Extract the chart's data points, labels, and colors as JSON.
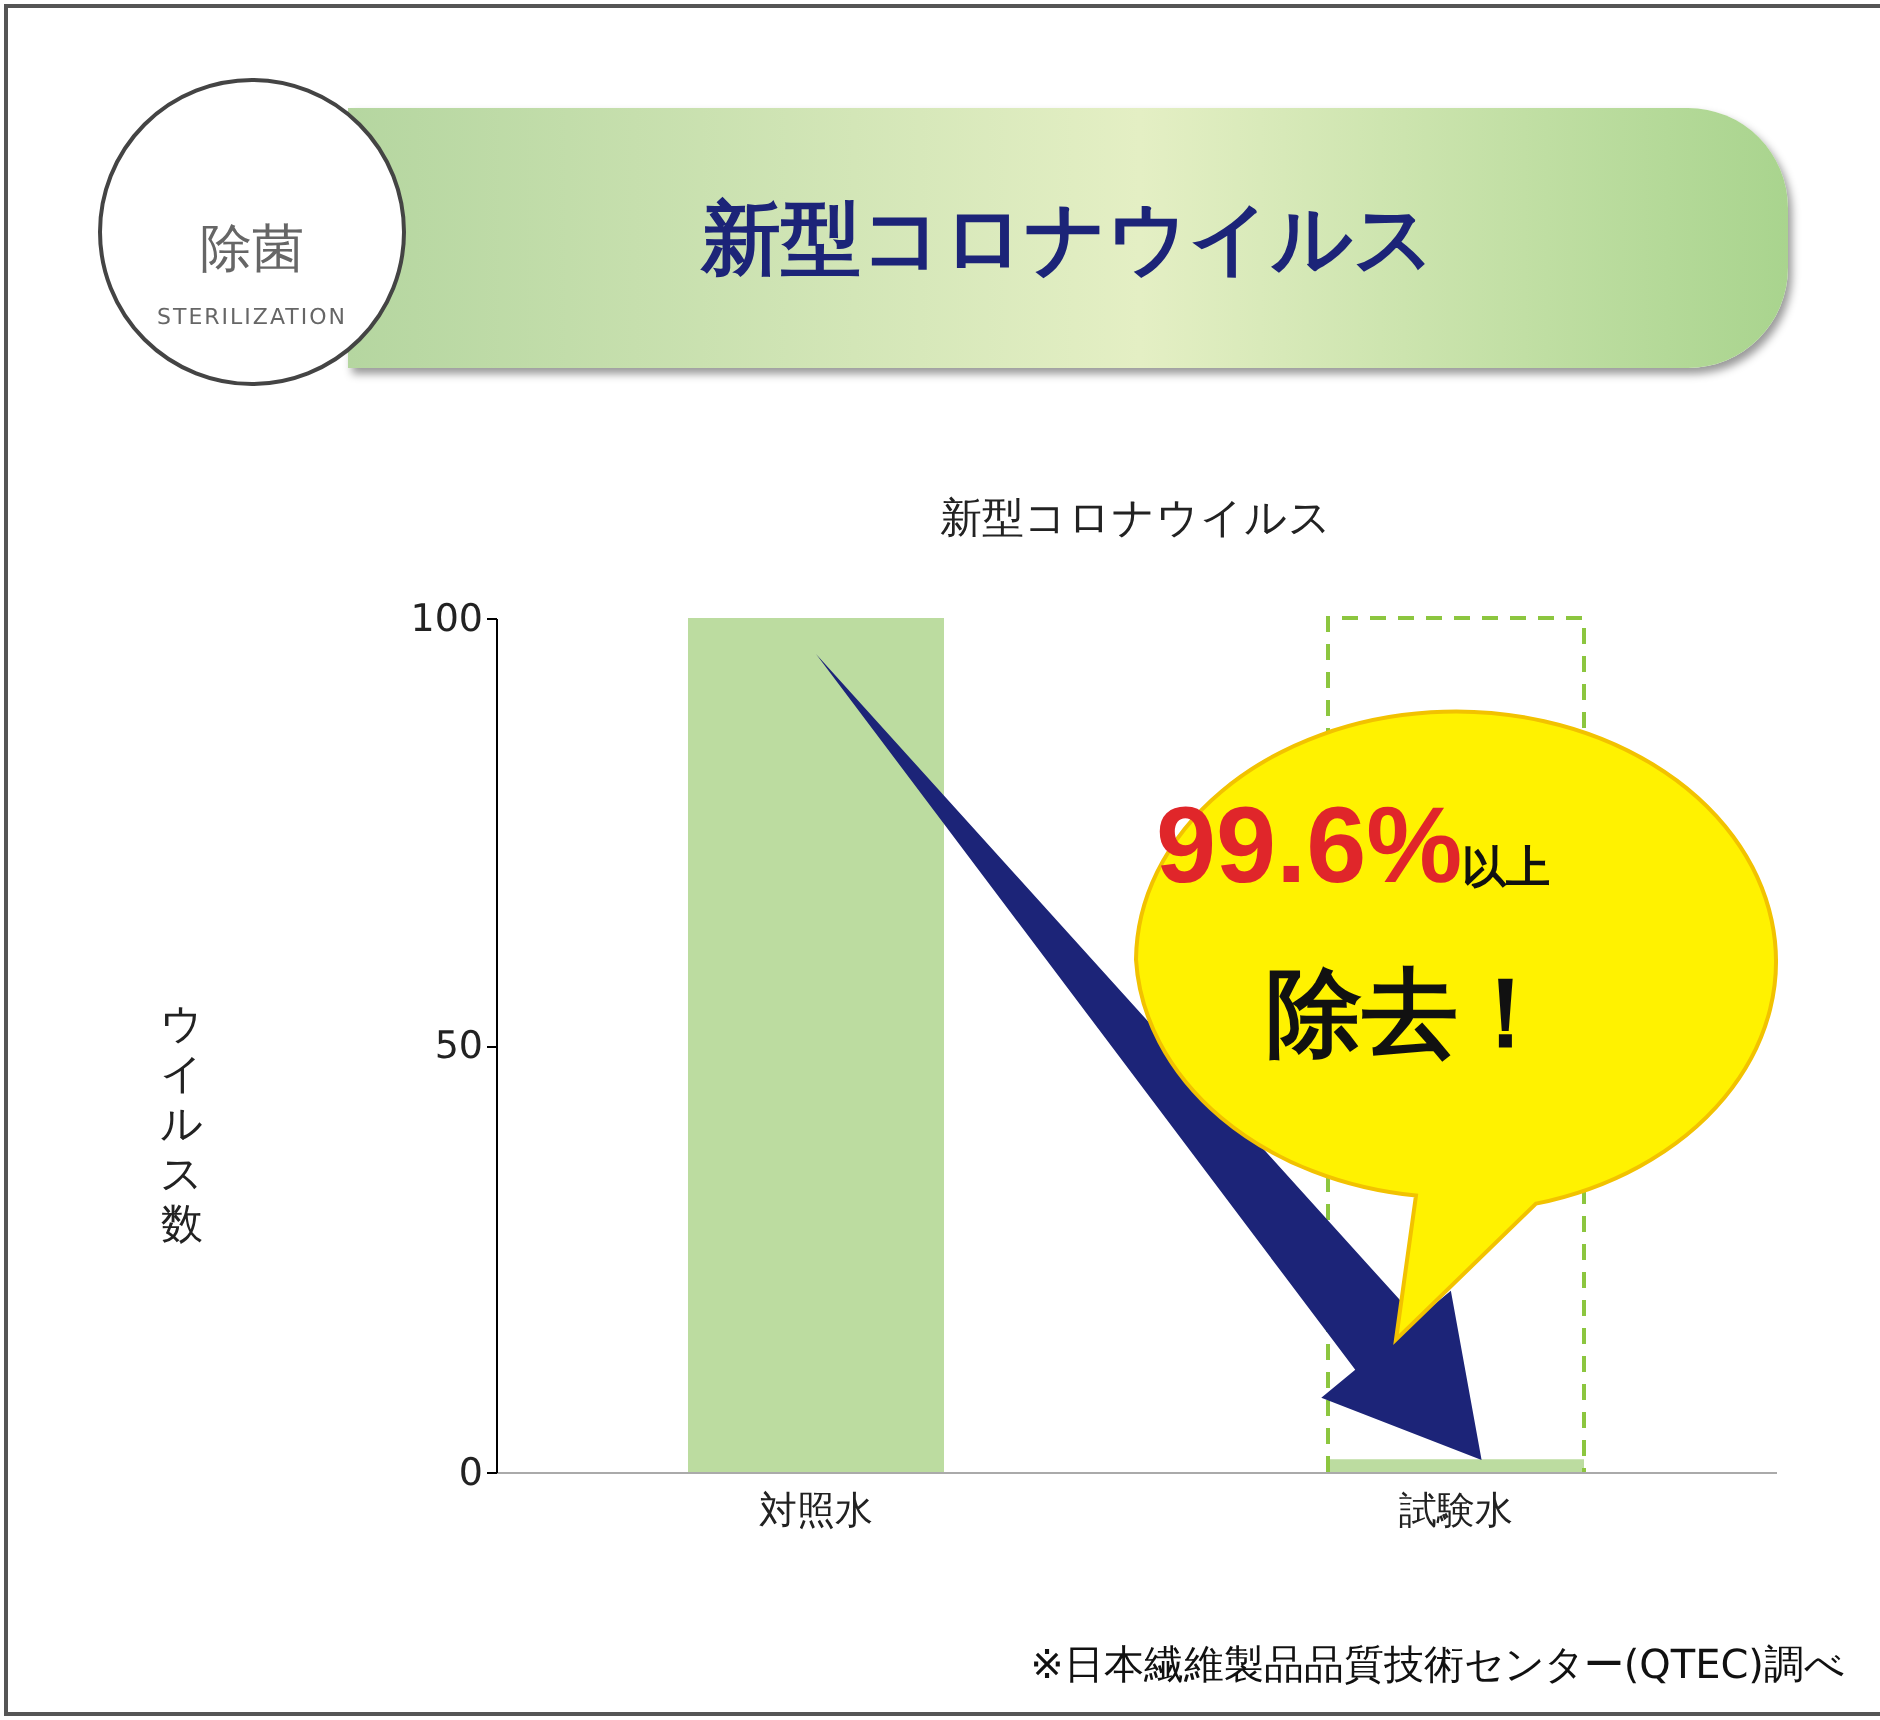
{
  "chart_data": {
    "type": "bar",
    "title": "新型コロナウイルス",
    "subtitle": "新型コロナウイルス",
    "ylabel": "ウイルス数",
    "categories": [
      "対照水",
      "試験水"
    ],
    "values": [
      100,
      1.5
    ],
    "color": "#bcdca0",
    "ylim": [
      0,
      100
    ],
    "yticks": [
      0,
      50,
      100
    ],
    "grid": false,
    "annotations": [
      "除菌",
      "STERILIZATION",
      "99.6%以上",
      "除去！",
      "※日本繊維製品品質技術センター(QTEC)調べ"
    ]
  }
}
